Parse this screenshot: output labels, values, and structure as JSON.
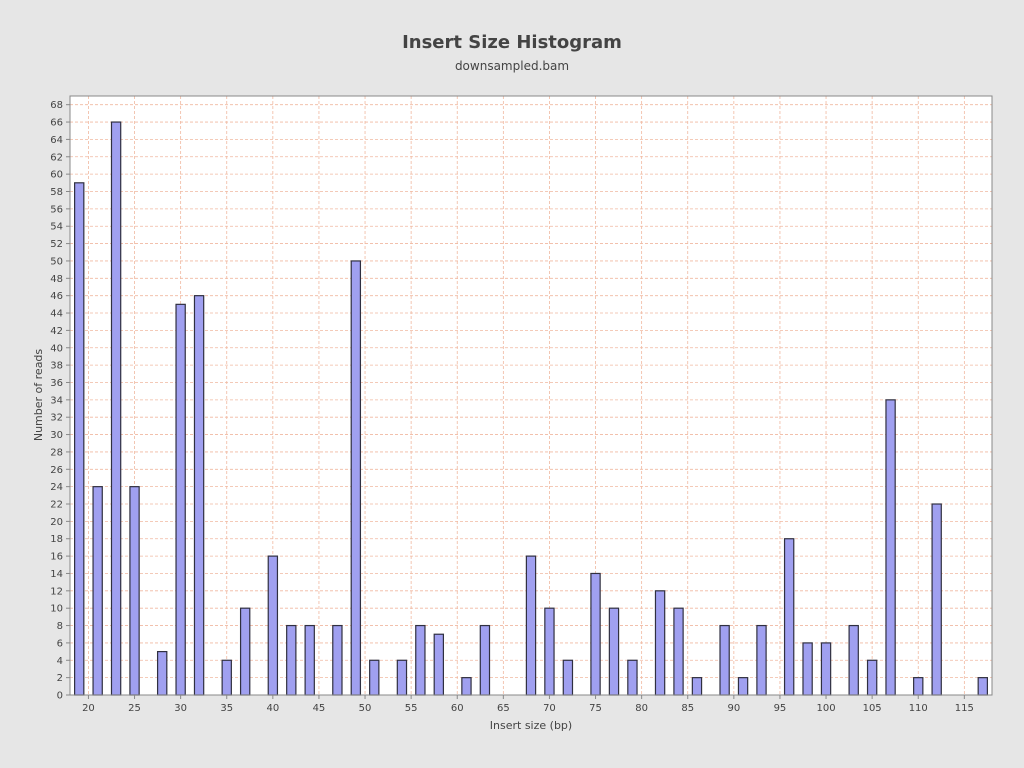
{
  "chart_data": {
    "type": "bar",
    "title": "Insert Size Histogram",
    "subtitle": "downsampled.bam",
    "xlabel": "Insert size (bp)",
    "ylabel": "Number of reads",
    "xlim": [
      18,
      118
    ],
    "ylim": [
      0,
      69
    ],
    "x_ticks": [
      20,
      25,
      30,
      35,
      40,
      45,
      50,
      55,
      60,
      65,
      70,
      75,
      80,
      85,
      90,
      95,
      100,
      105,
      110,
      115
    ],
    "y_tick_step": 2,
    "bar_width": 1.0,
    "grid": true,
    "legend": "none",
    "colors": {
      "background": "#e6e6e6",
      "plot_background": "#ffffff",
      "bar_fill": "#a0a0f0",
      "bar_stroke": "#303040",
      "grid": "#f0b8a0",
      "axis": "#888888",
      "text": "#444444"
    },
    "series": [
      {
        "x": [
          19,
          21,
          23,
          25,
          28,
          30,
          32,
          35,
          37,
          40,
          42,
          44,
          47,
          49,
          51,
          54,
          56,
          58,
          61,
          63,
          68,
          70,
          72,
          75,
          77,
          79,
          82,
          84,
          86,
          89,
          91,
          93,
          96,
          98,
          100,
          103,
          105,
          107,
          110,
          112,
          117
        ],
        "y": [
          59,
          24,
          66,
          24,
          5,
          45,
          46,
          4,
          10,
          16,
          8,
          8,
          8,
          50,
          4,
          4,
          8,
          7,
          2,
          8,
          16,
          10,
          4,
          14,
          10,
          4,
          12,
          10,
          2,
          8,
          2,
          8,
          18,
          6,
          6,
          8,
          4,
          34,
          2,
          22,
          2
        ]
      }
    ]
  }
}
